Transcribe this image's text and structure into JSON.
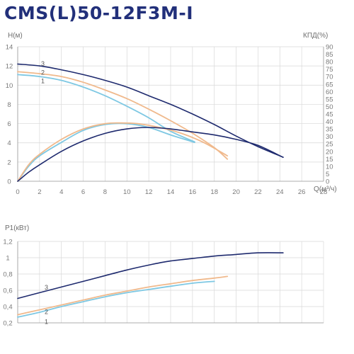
{
  "title": "CMS(L)50-12F3M-I",
  "colors": {
    "curve_1": "#7ec8e3",
    "curve_2": "#f0b98c",
    "curve_3": "#1e2a6e",
    "title": "#22307a"
  },
  "chart_data": [
    {
      "type": "line",
      "name": "Q-H / efficiency",
      "xlabel": "Q(м³/ч)",
      "ylabel": "H(м)",
      "y2label": "КПД(%)",
      "xlim": [
        0,
        28
      ],
      "ylim": [
        0,
        14
      ],
      "y2lim": [
        0,
        90
      ],
      "xticks": [
        "0",
        "2",
        "4",
        "6",
        "8",
        "10",
        "12",
        "14",
        "16",
        "18",
        "20",
        "22",
        "24",
        "26",
        "28"
      ],
      "yticks": [
        "0",
        "2",
        "4",
        "6",
        "8",
        "10",
        "12",
        "14"
      ],
      "y2ticks": [
        "0",
        "5",
        "10",
        "15",
        "20",
        "25",
        "30",
        "35",
        "40",
        "45",
        "50",
        "55",
        "60",
        "65",
        "70",
        "75",
        "80",
        "85",
        "90"
      ],
      "grid": true,
      "curve_labels": [
        {
          "text": "1",
          "x": 2.3,
          "y": 10.2
        },
        {
          "text": "2",
          "x": 2.3,
          "y": 11.1
        },
        {
          "text": "3",
          "x": 2.3,
          "y": 12.0
        }
      ],
      "series": [
        {
          "id": "h1",
          "curve": "1",
          "axis": "left",
          "color": "#7ec8e3",
          "points": [
            [
              0,
              11.1
            ],
            [
              2,
              10.9
            ],
            [
              4,
              10.5
            ],
            [
              6,
              9.8
            ],
            [
              8,
              8.9
            ],
            [
              10,
              7.8
            ],
            [
              12,
              6.6
            ],
            [
              14,
              5.2
            ],
            [
              16.2,
              4.1
            ]
          ]
        },
        {
          "id": "h2",
          "curve": "2",
          "axis": "left",
          "color": "#f0b98c",
          "points": [
            [
              0,
              11.4
            ],
            [
              2,
              11.2
            ],
            [
              4,
              10.9
            ],
            [
              6,
              10.3
            ],
            [
              8,
              9.5
            ],
            [
              10,
              8.6
            ],
            [
              12,
              7.5
            ],
            [
              14,
              6.3
            ],
            [
              16,
              5.0
            ],
            [
              18,
              3.5
            ],
            [
              19.2,
              2.3
            ]
          ]
        },
        {
          "id": "h3",
          "curve": "3",
          "axis": "left",
          "color": "#1e2a6e",
          "points": [
            [
              0,
              12.2
            ],
            [
              2,
              12.0
            ],
            [
              4,
              11.6
            ],
            [
              6,
              11.1
            ],
            [
              8,
              10.5
            ],
            [
              10,
              9.8
            ],
            [
              12,
              8.9
            ],
            [
              14,
              8.0
            ],
            [
              16,
              7.0
            ],
            [
              18,
              5.9
            ],
            [
              20,
              4.7
            ],
            [
              22,
              3.6
            ],
            [
              24.3,
              2.5
            ]
          ]
        },
        {
          "id": "e1",
          "curve": "1",
          "axis": "right",
          "color": "#7ec8e3",
          "points": [
            [
              0,
              0
            ],
            [
              1,
              10
            ],
            [
              2,
              17
            ],
            [
              4,
              26
            ],
            [
              6,
              34
            ],
            [
              8,
              38
            ],
            [
              10,
              38.5
            ],
            [
              12,
              36
            ],
            [
              14,
              31
            ],
            [
              16.2,
              26
            ]
          ]
        },
        {
          "id": "e2",
          "curve": "2",
          "axis": "right",
          "color": "#f0b98c",
          "points": [
            [
              0,
              0
            ],
            [
              1,
              11
            ],
            [
              2,
              18
            ],
            [
              4,
              28
            ],
            [
              6,
              35
            ],
            [
              8,
              38.5
            ],
            [
              9.5,
              39
            ],
            [
              11,
              38.5
            ],
            [
              13,
              36
            ],
            [
              15,
              32
            ],
            [
              17,
              26
            ],
            [
              19.2,
              17
            ]
          ]
        },
        {
          "id": "e3",
          "curve": "3",
          "axis": "right",
          "color": "#1e2a6e",
          "points": [
            [
              0,
              0
            ],
            [
              1,
              6
            ],
            [
              2,
              11
            ],
            [
              4,
              20
            ],
            [
              6,
              27
            ],
            [
              8,
              32
            ],
            [
              10,
              35
            ],
            [
              12,
              36
            ],
            [
              14,
              35
            ],
            [
              16,
              33
            ],
            [
              18,
              31
            ],
            [
              20,
              28
            ],
            [
              22,
              24
            ],
            [
              24.3,
              16
            ]
          ]
        }
      ]
    },
    {
      "type": "line",
      "name": "Q-P1",
      "ylabel": "P1(кВт)",
      "xlim": [
        0,
        28
      ],
      "ylim": [
        0.2,
        1.2
      ],
      "yticks": [
        "0,2",
        "0,4",
        "0,6",
        "0,8",
        "1",
        "1,2"
      ],
      "grid": true,
      "curve_labels": [
        {
          "text": "1",
          "x": 2.3,
          "y": 0.24
        },
        {
          "text": "2",
          "x": 2.3,
          "y": 0.36
        },
        {
          "text": "3",
          "x": 2.3,
          "y": 0.66
        }
      ],
      "series": [
        {
          "id": "p1",
          "curve": "1",
          "color": "#7ec8e3",
          "points": [
            [
              0,
              0.27
            ],
            [
              2,
              0.33
            ],
            [
              4,
              0.4
            ],
            [
              6,
              0.46
            ],
            [
              8,
              0.52
            ],
            [
              10,
              0.57
            ],
            [
              12,
              0.61
            ],
            [
              14,
              0.65
            ],
            [
              16.2,
              0.69
            ],
            [
              18,
              0.71
            ]
          ]
        },
        {
          "id": "p2",
          "curve": "2",
          "color": "#f0b98c",
          "points": [
            [
              0,
              0.3
            ],
            [
              2,
              0.36
            ],
            [
              4,
              0.42
            ],
            [
              6,
              0.48
            ],
            [
              8,
              0.54
            ],
            [
              10,
              0.59
            ],
            [
              12,
              0.64
            ],
            [
              14,
              0.68
            ],
            [
              16,
              0.72
            ],
            [
              18,
              0.75
            ],
            [
              19.2,
              0.77
            ]
          ]
        },
        {
          "id": "p3",
          "curve": "3",
          "color": "#1e2a6e",
          "points": [
            [
              0,
              0.5
            ],
            [
              2,
              0.57
            ],
            [
              4,
              0.64
            ],
            [
              6,
              0.71
            ],
            [
              8,
              0.78
            ],
            [
              10,
              0.85
            ],
            [
              12,
              0.91
            ],
            [
              14,
              0.96
            ],
            [
              16,
              0.99
            ],
            [
              18,
              1.02
            ],
            [
              20,
              1.04
            ],
            [
              22,
              1.06
            ],
            [
              24.3,
              1.06
            ]
          ]
        }
      ]
    }
  ]
}
